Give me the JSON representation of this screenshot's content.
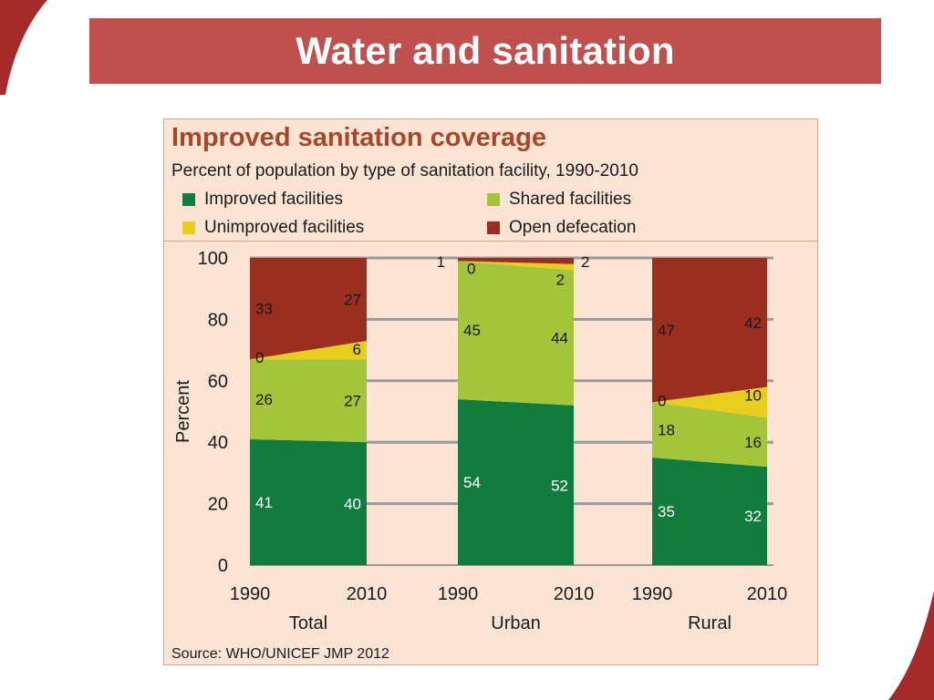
{
  "slide": {
    "title": "Water and sanitation"
  },
  "colors": {
    "banner": "#c0504d",
    "improved": "#127c3e",
    "shared": "#a3c43b",
    "unimproved": "#e6cd1e",
    "open": "#9a2e21",
    "frame_bg": "#fbe4d4",
    "title_text": "#a8462a"
  },
  "chart_data": {
    "type": "area",
    "title": "Improved sanitation coverage",
    "subtitle": "Percent of population by type of sanitation facility, 1990-2010",
    "ylabel": "Percent",
    "ylim": [
      0,
      100
    ],
    "yticks": [
      0,
      20,
      40,
      60,
      80,
      100
    ],
    "grid": true,
    "legend_position": "top",
    "series": [
      {
        "key": "improved",
        "name": "Improved facilities"
      },
      {
        "key": "shared",
        "name": "Shared facilities"
      },
      {
        "key": "unimproved",
        "name": "Unimproved facilities"
      },
      {
        "key": "open",
        "name": "Open defecation"
      }
    ],
    "groups": [
      {
        "name": "Total",
        "years": [
          "1990",
          "2010"
        ],
        "values": {
          "improved": [
            41,
            40
          ],
          "shared": [
            26,
            27
          ],
          "unimproved": [
            0,
            6
          ],
          "open": [
            33,
            27
          ]
        }
      },
      {
        "name": "Urban",
        "years": [
          "1990",
          "2010"
        ],
        "values": {
          "improved": [
            54,
            52
          ],
          "shared": [
            45,
            44
          ],
          "unimproved": [
            0,
            2
          ],
          "open": [
            1,
            2
          ]
        }
      },
      {
        "name": "Rural",
        "years": [
          "1990",
          "2010"
        ],
        "values": {
          "improved": [
            35,
            32
          ],
          "shared": [
            18,
            16
          ],
          "unimproved": [
            0,
            10
          ],
          "open": [
            47,
            42
          ]
        }
      }
    ],
    "source": "Source:  WHO/UNICEF JMP 2012"
  }
}
